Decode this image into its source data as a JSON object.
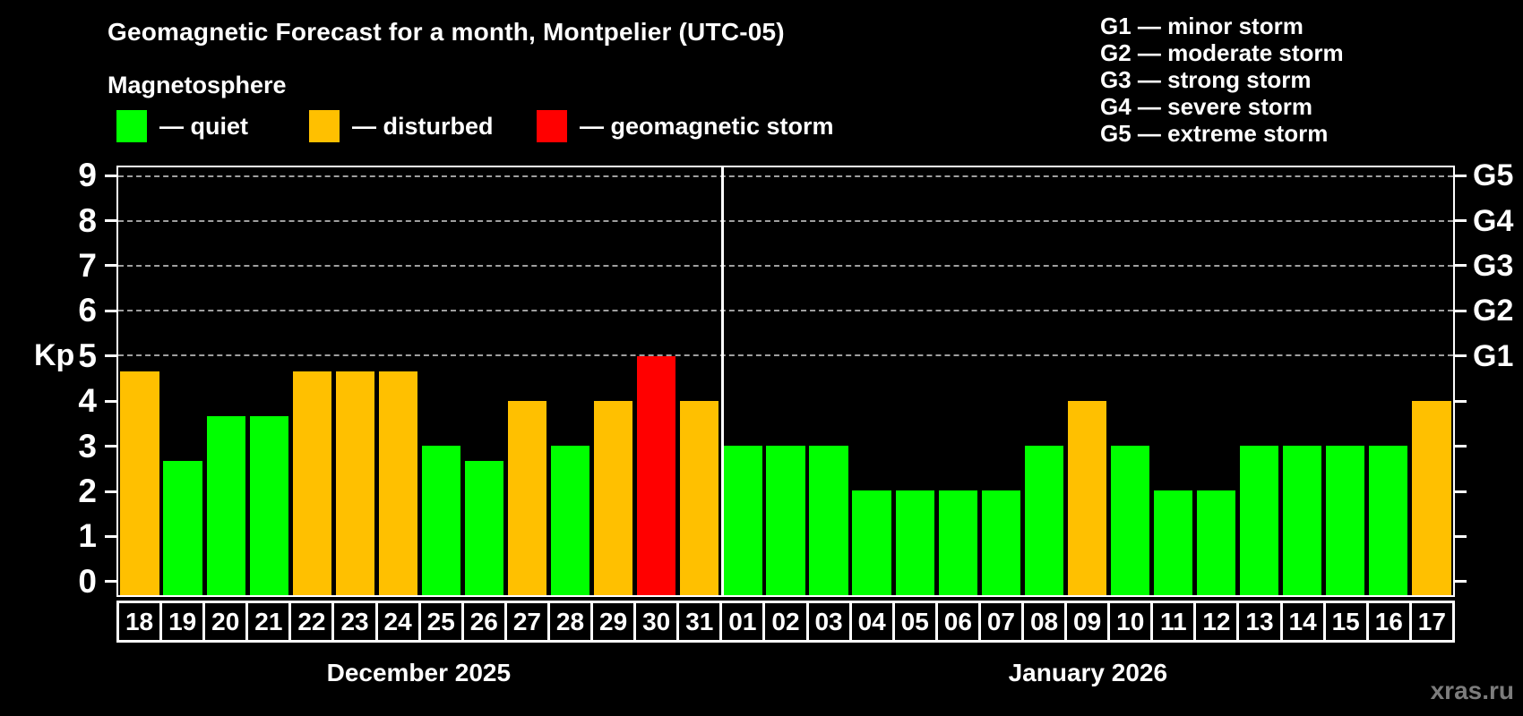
{
  "header": {
    "title": "Geomagnetic Forecast for a month, Montpelier (UTC-05)",
    "subtitle": "Magnetosphere"
  },
  "legend": {
    "items": [
      {
        "name": "quiet",
        "label": "— quiet",
        "color": "#00ff00"
      },
      {
        "name": "disturbed",
        "label": "— disturbed",
        "color": "#ffc000"
      },
      {
        "name": "storm",
        "label": "— geomagnetic storm",
        "color": "#ff0000"
      }
    ]
  },
  "storm_scale": {
    "items": [
      "G1 — minor storm",
      "G2 — moderate storm",
      "G3 — strong storm",
      "G4 — severe storm",
      "G5 — extreme storm"
    ]
  },
  "watermark": "xras.ru",
  "chart_data": {
    "type": "bar",
    "ylabel": "Kp",
    "y_ticks": [
      0,
      1,
      2,
      3,
      4,
      5,
      6,
      7,
      8,
      9
    ],
    "ylim": [
      0,
      9.3
    ],
    "grid_levels": [
      5,
      6,
      7,
      8,
      9
    ],
    "grid_on": true,
    "legend_position": "top",
    "right_axis": [
      {
        "label": "G1",
        "kp": 5
      },
      {
        "label": "G2",
        "kp": 6
      },
      {
        "label": "G3",
        "kp": 7
      },
      {
        "label": "G4",
        "kp": 8
      },
      {
        "label": "G5",
        "kp": 9
      }
    ],
    "colors": {
      "quiet": "#00ff00",
      "disturbed": "#ffc000",
      "storm": "#ff0000"
    },
    "color_thresholds": {
      "disturbed_min": 4,
      "storm_min": 5
    },
    "months": [
      {
        "label": "December 2025",
        "days": [
          "18",
          "19",
          "20",
          "21",
          "22",
          "23",
          "24",
          "25",
          "26",
          "27",
          "28",
          "29",
          "30",
          "31"
        ],
        "values": [
          4.67,
          2.67,
          3.67,
          3.67,
          4.67,
          4.67,
          4.67,
          3,
          2.67,
          4,
          3,
          4,
          5,
          4
        ]
      },
      {
        "label": "January 2026",
        "days": [
          "01",
          "02",
          "03",
          "04",
          "05",
          "06",
          "07",
          "08",
          "09",
          "10",
          "11",
          "12",
          "13",
          "14",
          "15",
          "16",
          "17"
        ],
        "values": [
          3,
          3,
          3,
          2,
          2,
          2,
          2,
          3,
          4,
          3,
          2,
          2,
          3,
          3,
          3,
          3,
          4
        ]
      }
    ]
  }
}
